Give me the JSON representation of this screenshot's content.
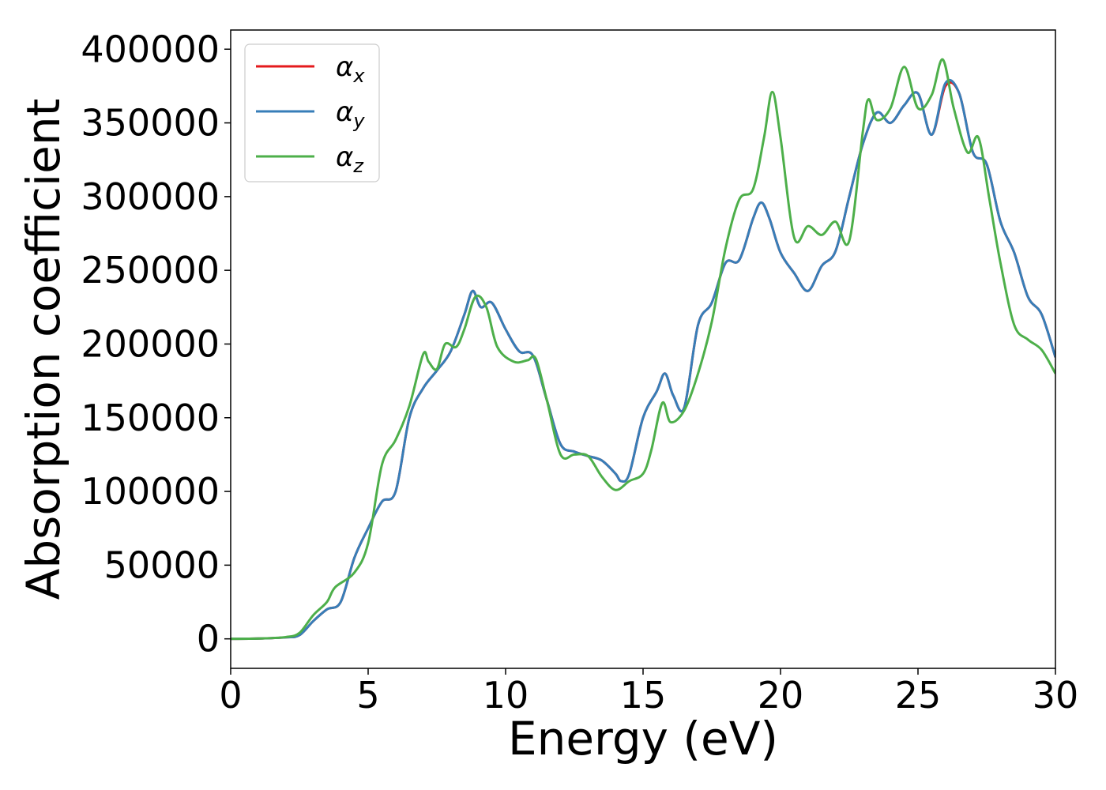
{
  "chart_data": {
    "type": "line",
    "xlabel": "Energy (eV)",
    "ylabel": "Absorption coefficient",
    "xlim": [
      0,
      30
    ],
    "ylim": [
      -20000,
      413000
    ],
    "xticks": [
      0,
      5,
      10,
      15,
      20,
      25,
      30
    ],
    "yticks": [
      0,
      50000,
      100000,
      150000,
      200000,
      250000,
      300000,
      350000,
      400000
    ],
    "grid": false,
    "legend_position": "top-left",
    "series": [
      {
        "name": "α",
        "subscript": "x",
        "color": "#e41a1c",
        "x": [
          0,
          1,
          2,
          2.5,
          3,
          3.5,
          4,
          4.5,
          5,
          5.5,
          6,
          6.5,
          7,
          7.5,
          8,
          8.5,
          8.8,
          9.1,
          9.5,
          10,
          10.5,
          11,
          11.5,
          12,
          12.5,
          13,
          13.5,
          14,
          14.2,
          14.5,
          15,
          15.5,
          15.8,
          16.1,
          16.5,
          17,
          17.5,
          18,
          18.5,
          19,
          19.3,
          19.6,
          20,
          20.5,
          21,
          21.5,
          22,
          22.5,
          23,
          23.5,
          24,
          24.5,
          25,
          25.5,
          26,
          26.5,
          27,
          27.5,
          28,
          28.5,
          29,
          29.5,
          30
        ],
        "values": [
          0,
          200,
          1000,
          2500,
          12000,
          20000,
          25000,
          55000,
          75000,
          93000,
          100000,
          150000,
          170000,
          182000,
          195000,
          220000,
          236000,
          225000,
          228000,
          210000,
          195000,
          192000,
          162000,
          132000,
          127000,
          124000,
          121000,
          112000,
          107000,
          112000,
          150000,
          168000,
          180000,
          165000,
          157000,
          213000,
          228000,
          255000,
          257000,
          285000,
          296000,
          285000,
          262000,
          248000,
          236000,
          253000,
          263000,
          300000,
          336000,
          357000,
          350000,
          362000,
          370000,
          342000,
          375000,
          370000,
          330000,
          322000,
          283000,
          262000,
          232000,
          220000,
          191000
        ]
      },
      {
        "name": "α",
        "subscript": "y",
        "color": "#377eb8",
        "x": [
          0,
          1,
          2,
          2.5,
          3,
          3.5,
          4,
          4.5,
          5,
          5.5,
          6,
          6.5,
          7,
          7.5,
          8,
          8.5,
          8.8,
          9.1,
          9.5,
          10,
          10.5,
          11,
          11.5,
          12,
          12.5,
          13,
          13.5,
          14,
          14.2,
          14.5,
          15,
          15.5,
          15.8,
          16.1,
          16.5,
          17,
          17.5,
          18,
          18.5,
          19,
          19.3,
          19.6,
          20,
          20.5,
          21,
          21.5,
          22,
          22.5,
          23,
          23.5,
          24,
          24.5,
          25,
          25.5,
          26,
          26.5,
          27,
          27.5,
          28,
          28.5,
          29,
          29.5,
          30
        ],
        "values": [
          0,
          200,
          1000,
          2500,
          12000,
          20000,
          25000,
          55000,
          75000,
          93000,
          100000,
          150000,
          170000,
          182000,
          195000,
          220000,
          236000,
          225000,
          228000,
          210000,
          195000,
          192000,
          162000,
          132000,
          127000,
          124000,
          121000,
          112000,
          107000,
          112000,
          150000,
          168000,
          180000,
          165000,
          157000,
          213000,
          228000,
          255000,
          257000,
          285000,
          296000,
          285000,
          262000,
          248000,
          236000,
          253000,
          263000,
          300000,
          336000,
          357000,
          350000,
          362000,
          370000,
          342000,
          377000,
          370000,
          330000,
          322000,
          283000,
          262000,
          232000,
          220000,
          191000
        ]
      },
      {
        "name": "α",
        "subscript": "z",
        "color": "#4daf4a",
        "x": [
          0,
          1,
          2,
          2.5,
          3,
          3.5,
          3.8,
          4.5,
          5,
          5.5,
          6,
          6.5,
          7,
          7.2,
          7.5,
          7.8,
          8.2,
          8.5,
          8.9,
          9.3,
          9.7,
          10.3,
          10.8,
          11.1,
          11.5,
          12,
          12.5,
          13,
          13.5,
          14,
          14.5,
          15,
          15.3,
          15.7,
          16,
          16.5,
          17,
          17.5,
          18,
          18.5,
          19,
          19.4,
          19.7,
          20,
          20.5,
          21,
          21.5,
          22,
          22.5,
          23,
          23.2,
          23.5,
          24,
          24.5,
          25,
          25.5,
          25.9,
          26.3,
          26.8,
          27.2,
          27.6,
          28,
          28.5,
          29,
          29.5,
          30
        ],
        "values": [
          0,
          200,
          1200,
          4000,
          16000,
          25000,
          35000,
          45000,
          65000,
          118000,
          135000,
          158000,
          193000,
          188000,
          183000,
          200000,
          198000,
          210000,
          232000,
          225000,
          198000,
          188000,
          189000,
          190000,
          162000,
          125000,
          125000,
          124000,
          110000,
          101000,
          107000,
          112000,
          128000,
          160000,
          147000,
          155000,
          180000,
          215000,
          265000,
          298000,
          305000,
          340000,
          371000,
          340000,
          272000,
          280000,
          274000,
          283000,
          270000,
          345000,
          366000,
          352000,
          360000,
          388000,
          360000,
          369000,
          393000,
          360000,
          330000,
          340000,
          298000,
          255000,
          213000,
          203000,
          196000,
          180000
        ]
      }
    ]
  }
}
